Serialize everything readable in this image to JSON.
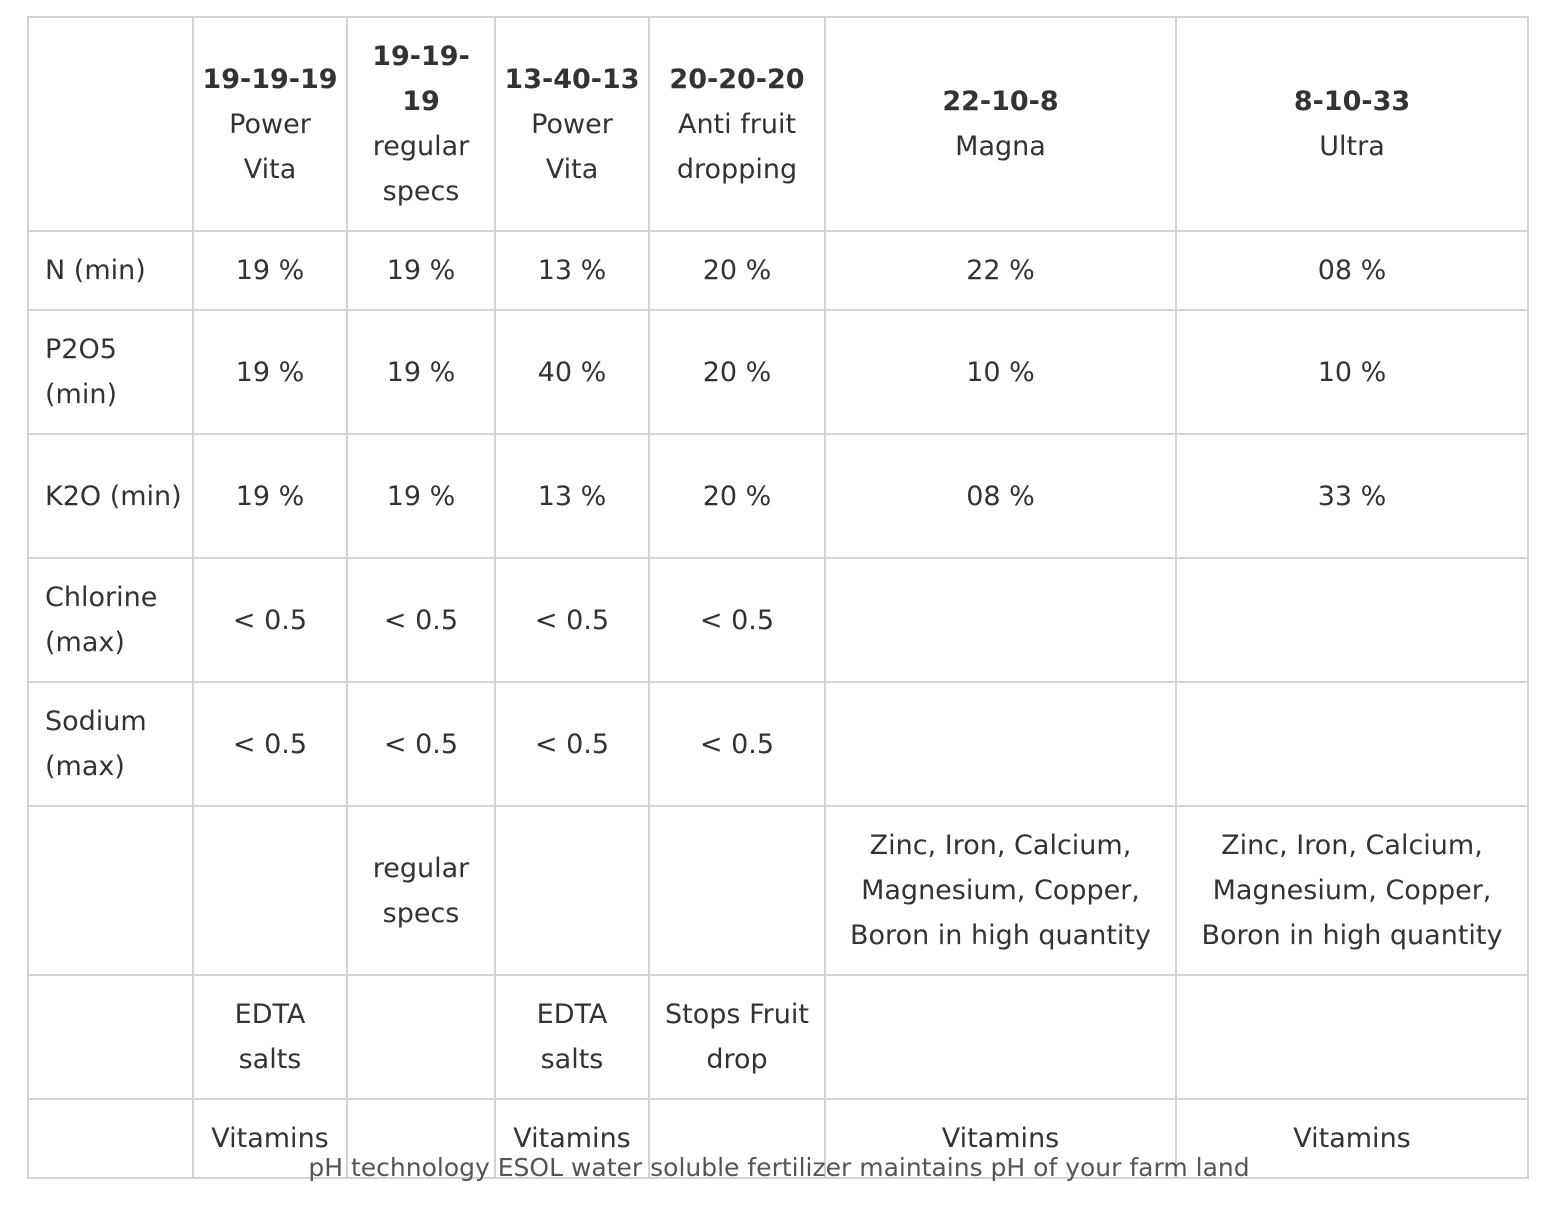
{
  "products": [
    {
      "grade": "19-19-19",
      "name": "Power Vita"
    },
    {
      "grade": "19-19-19",
      "name": "regular specs"
    },
    {
      "grade": "13-40-13",
      "name": "Power Vita"
    },
    {
      "grade": "20-20-20",
      "name": "Anti fruit dropping"
    },
    {
      "grade": "22-10-8",
      "name": "Magna"
    },
    {
      "grade": "8-10-33",
      "name": "Ultra"
    }
  ],
  "rows": [
    {
      "label": "N (min)",
      "values": [
        "19 %",
        "19 %",
        "13 %",
        "20 %",
        "22 %",
        "08 %"
      ]
    },
    {
      "label": "P2O5 (min)",
      "values": [
        "19 %",
        "19 %",
        "40 %",
        "20 %",
        "10 %",
        "10 %"
      ]
    },
    {
      "label": "K2O (min)",
      "values": [
        "19 %",
        "19 %",
        "13 %",
        "20 %",
        "08 %",
        "33 %"
      ]
    },
    {
      "label": "Chlorine (max)",
      "values": [
        "< 0.5",
        "< 0.5",
        "< 0.5",
        "< 0.5",
        "",
        ""
      ]
    },
    {
      "label": "Sodium (max)",
      "values": [
        "< 0.5",
        "< 0.5",
        "< 0.5",
        "< 0.5",
        "",
        ""
      ]
    },
    {
      "label": "",
      "values": [
        "",
        "regular specs",
        "",
        "",
        "Zinc, Iron, Calcium, Magnesium, Copper, Boron in high quantity",
        "Zinc, Iron, Calcium, Magnesium, Copper, Boron in high quantity"
      ]
    },
    {
      "label": "",
      "values": [
        "EDTA salts",
        "",
        "EDTA salts",
        "Stops Fruit drop",
        "",
        ""
      ]
    },
    {
      "label": "",
      "values": [
        "Vitamins",
        "",
        "Vitamins",
        "",
        "Vitamins",
        "Vitamins"
      ]
    }
  ],
  "caption": "pH technology ESOL water soluble fertilizer maintains pH of your farm land"
}
